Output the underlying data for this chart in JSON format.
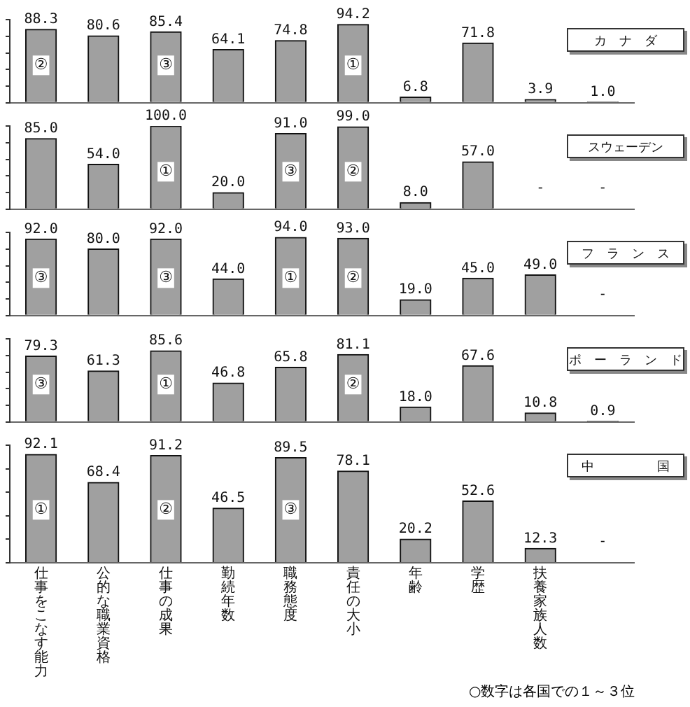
{
  "chart_data": [
    {
      "type": "bar",
      "title": "カ　ナ　ダ",
      "categories": [
        "仕事をこなす能力",
        "公的な職業資格",
        "仕事の成果",
        "勤続年数",
        "職務態度",
        "責任の大小",
        "年齢",
        "学歴",
        "扶養家族人数",
        null
      ],
      "color": "#a0a0a0",
      "values": [
        88.3,
        80.6,
        85.4,
        64.1,
        74.8,
        94.2,
        6.8,
        71.8,
        3.9,
        1.0
      ],
      "value_labels": [
        "88.3",
        "80.6",
        "85.4",
        "64.1",
        "74.8",
        "94.2",
        "6.8",
        "71.8",
        "3.9",
        "1.0"
      ],
      "ylim": [
        0,
        100
      ],
      "yticks": [
        {
          "value": 0,
          "label": null
        },
        {
          "value": 20,
          "label": null
        },
        {
          "value": 40,
          "label": null
        },
        {
          "value": 60,
          "label": null
        },
        {
          "value": 80,
          "label": null
        },
        {
          "value": 100,
          "label": null
        }
      ],
      "tick_labels": false,
      "grid": false,
      "legend": false,
      "annotations": [
        {
          "text": "②",
          "x": "仕事をこなす能力",
          "y": 45
        },
        {
          "text": "③",
          "x": "仕事の成果",
          "y": 45
        },
        {
          "text": "①",
          "x": "責任の大小",
          "y": 45
        }
      ]
    },
    {
      "type": "bar",
      "title": "スウェーデン",
      "categories": [
        "仕事をこなす能力",
        "公的な職業資格",
        "仕事の成果",
        "勤続年数",
        "職務態度",
        "責任の大小",
        "年齢",
        "学歴",
        "扶養家族人数",
        null
      ],
      "color": "#a0a0a0",
      "values": [
        85.0,
        54.0,
        100.0,
        20.0,
        91.0,
        99.0,
        8.0,
        57.0,
        null,
        null
      ],
      "value_labels": [
        "85.0",
        "54.0",
        "100.0",
        "20.0",
        "91.0",
        "99.0",
        "8.0",
        "57.0",
        "-",
        "-"
      ],
      "ylim": [
        0,
        100
      ],
      "yticks": [
        {
          "value": 0,
          "label": null
        },
        {
          "value": 20,
          "label": null
        },
        {
          "value": 40,
          "label": null
        },
        {
          "value": 60,
          "label": null
        },
        {
          "value": 80,
          "label": null
        },
        {
          "value": 100,
          "label": null
        }
      ],
      "tick_labels": false,
      "grid": false,
      "legend": false,
      "annotations": [
        {
          "text": "①",
          "x": "仕事の成果",
          "y": 45
        },
        {
          "text": "③",
          "x": "職務態度",
          "y": 45
        },
        {
          "text": "②",
          "x": "責任の大小",
          "y": 45
        }
      ]
    },
    {
      "type": "bar",
      "title": "フ　ラ　ン　ス",
      "categories": [
        "仕事をこなす能力",
        "公的な職業資格",
        "仕事の成果",
        "勤続年数",
        "職務態度",
        "責任の大小",
        "年齢",
        "学歴",
        "扶養家族人数",
        null
      ],
      "color": "#a0a0a0",
      "values": [
        92.0,
        80.0,
        92.0,
        44.0,
        94.0,
        93.0,
        19.0,
        45.0,
        49.0,
        null
      ],
      "value_labels": [
        "92.0",
        "80.0",
        "92.0",
        "44.0",
        "94.0",
        "93.0",
        "19.0",
        "45.0",
        "49.0",
        "-"
      ],
      "ylim": [
        0,
        100
      ],
      "yticks": [
        {
          "value": 0,
          "label": null
        },
        {
          "value": 20,
          "label": null
        },
        {
          "value": 40,
          "label": null
        },
        {
          "value": 60,
          "label": null
        },
        {
          "value": 80,
          "label": null
        },
        {
          "value": 100,
          "label": null
        }
      ],
      "tick_labels": false,
      "grid": false,
      "legend": false,
      "annotations": [
        {
          "text": "③",
          "x": "仕事をこなす能力",
          "y": 45
        },
        {
          "text": "③",
          "x": "仕事の成果",
          "y": 45
        },
        {
          "text": "①",
          "x": "職務態度",
          "y": 45
        },
        {
          "text": "②",
          "x": "責任の大小",
          "y": 45
        }
      ]
    },
    {
      "type": "bar",
      "title": "ポ　ー　ラ　ン　ド",
      "categories": [
        "仕事をこなす能力",
        "公的な職業資格",
        "仕事の成果",
        "勤続年数",
        "職務態度",
        "責任の大小",
        "年齢",
        "学歴",
        "扶養家族人数",
        null
      ],
      "color": "#a0a0a0",
      "values": [
        79.3,
        61.3,
        85.6,
        46.8,
        65.8,
        81.1,
        18.0,
        67.6,
        10.8,
        0.9
      ],
      "value_labels": [
        "79.3",
        "61.3",
        "85.6",
        "46.8",
        "65.8",
        "81.1",
        "18.0",
        "67.6",
        "10.8",
        "0.9"
      ],
      "ylim": [
        0,
        100
      ],
      "yticks": [
        {
          "value": 0,
          "label": null
        },
        {
          "value": 20,
          "label": null
        },
        {
          "value": 40,
          "label": null
        },
        {
          "value": 60,
          "label": null
        },
        {
          "value": 80,
          "label": null
        },
        {
          "value": 100,
          "label": null
        }
      ],
      "tick_labels": false,
      "grid": false,
      "legend": false,
      "annotations": [
        {
          "text": "③",
          "x": "仕事をこなす能力",
          "y": 45
        },
        {
          "text": "①",
          "x": "仕事の成果",
          "y": 45
        },
        {
          "text": "②",
          "x": "責任の大小",
          "y": 45
        }
      ]
    },
    {
      "type": "bar",
      "title": "中　　　　　国",
      "categories": [
        "仕事をこなす能力",
        "公的な職業資格",
        "仕事の成果",
        "勤続年数",
        "職務態度",
        "責任の大小",
        "年齢",
        "学歴",
        "扶養家族人数",
        null
      ],
      "color": "#a0a0a0",
      "values": [
        92.1,
        68.4,
        91.2,
        46.5,
        89.5,
        78.1,
        20.2,
        52.6,
        12.3,
        null
      ],
      "value_labels": [
        "92.1",
        "68.4",
        "91.2",
        "46.5",
        "89.5",
        "78.1",
        "20.2",
        "52.6",
        "12.3",
        "-"
      ],
      "ylim": [
        0,
        100
      ],
      "yticks": [
        {
          "value": 0,
          "label": null
        },
        {
          "value": 20,
          "label": null
        },
        {
          "value": 40,
          "label": null
        },
        {
          "value": 60,
          "label": null
        },
        {
          "value": 80,
          "label": null
        },
        {
          "value": 100,
          "label": null
        }
      ],
      "tick_labels": "x",
      "grid": false,
      "legend": false,
      "annotations": [
        {
          "text": "①",
          "x": "仕事をこなす能力",
          "y": 45
        },
        {
          "text": "②",
          "x": "仕事の成果",
          "y": 45
        },
        {
          "text": "③",
          "x": "職務態度",
          "y": 45
        },
        "○数字は各国での１～３位"
      ]
    }
  ]
}
